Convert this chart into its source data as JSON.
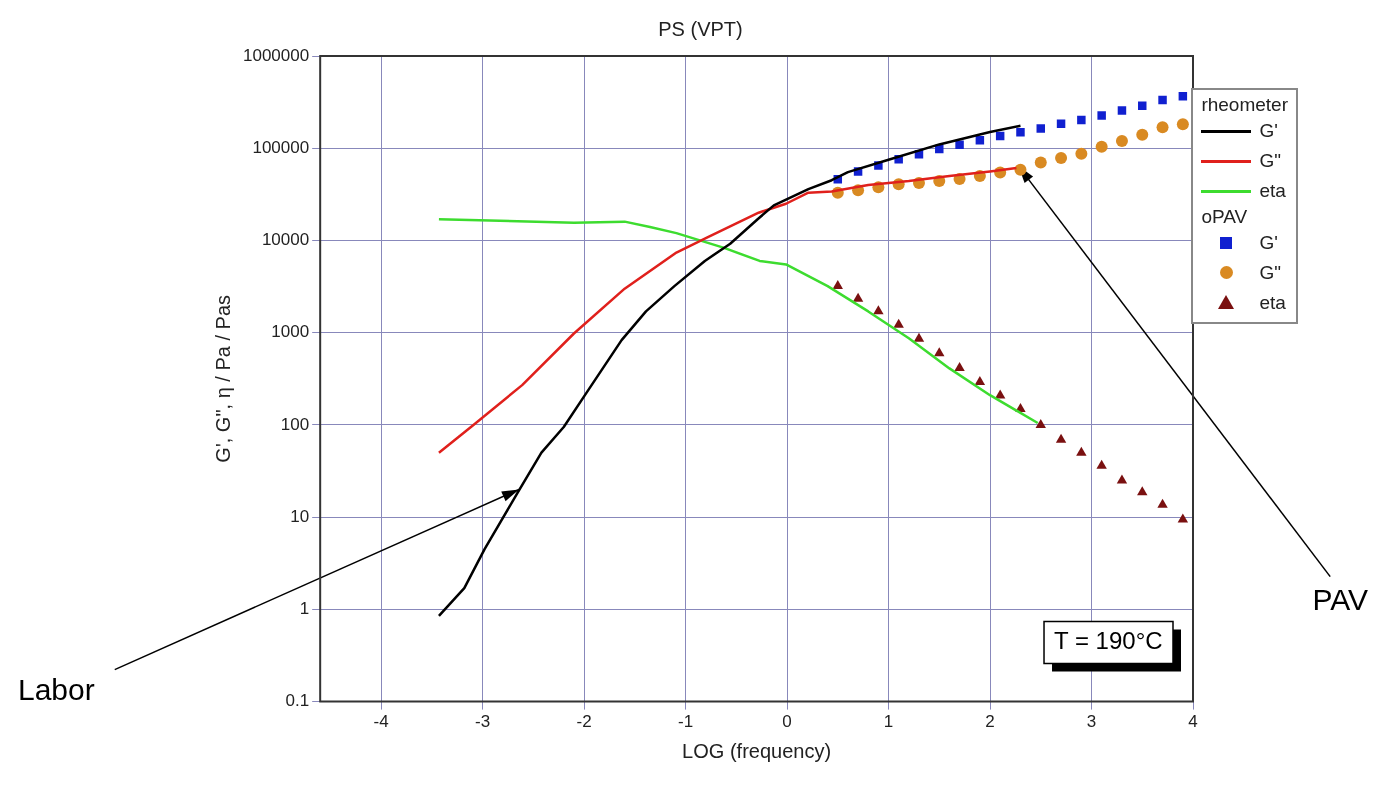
{
  "chart_data": {
    "type": "line",
    "title": "PS (VPT)",
    "xlabel": "LOG (frequency)",
    "ylabel": "G', G\", η / Pa / Pas",
    "log": "y",
    "grid": true,
    "legend": "right",
    "xlim": [
      -4.6,
      4
    ],
    "xticks": [
      -4,
      -3,
      -2,
      -1,
      0,
      1,
      2,
      3,
      4
    ],
    "ylim": [
      0.1,
      1000000
    ],
    "yticks": [
      0.1,
      1,
      10,
      100,
      1000,
      10000,
      100000,
      1000000
    ],
    "annotations": [
      "rheometer",
      "oPAV",
      "T = 190°C",
      {
        "text": "Labor",
        "x": -2.64,
        "y": 20
      },
      {
        "text": "PAV",
        "x": 2.28,
        "y": 64000
      }
    ],
    "series": [
      {
        "name": "G'",
        "type": "line",
        "marker": "none",
        "color": "#000000",
        "x": [
          -3.43,
          -3.18,
          -2.98,
          -2.66,
          -2.42,
          -2.2,
          -1.98,
          -1.63,
          -1.39,
          -1.11,
          -0.81,
          -0.56,
          -0.29,
          -0.13,
          0.21,
          0.44,
          0.6,
          1.0,
          1.5,
          2.0,
          2.3
        ],
        "values": [
          0.85,
          1.7,
          4.5,
          18,
          50,
          95,
          220,
          830,
          1700,
          3200,
          6000,
          9200,
          17000,
          24000,
          36000,
          45000,
          55000,
          75000,
          110000,
          150000,
          175000
        ]
      },
      {
        "name": "G\"",
        "type": "line",
        "marker": "none",
        "color": "#e0201c",
        "x": [
          -3.43,
          -3.09,
          -2.61,
          -2.1,
          -1.6,
          -1.09,
          -0.79,
          -0.28,
          -0.01,
          0.21,
          0.44,
          0.8,
          1.2,
          1.6,
          2.0,
          2.26
        ],
        "values": [
          50,
          100,
          270,
          980,
          3000,
          7400,
          10700,
          20000,
          25000,
          33000,
          34000,
          40000,
          44000,
          50000,
          56000,
          61000
        ]
      },
      {
        "name": "eta",
        "type": "line",
        "marker": "none",
        "color": "#3ddc2f",
        "x": [
          -3.43,
          -2.1,
          -1.6,
          -1.35,
          -1.09,
          -0.62,
          -0.27,
          -0.01,
          0.4,
          0.8,
          1.2,
          1.6,
          2.0,
          2.47
        ],
        "values": [
          17000,
          15600,
          16000,
          14000,
          12000,
          8300,
          6000,
          5500,
          3200,
          1700,
          870,
          410,
          210,
          105
        ]
      },
      {
        "name": "G'",
        "type": "scatter",
        "marker": "square",
        "color": "#1020d0",
        "x": [
          0.5,
          0.7,
          0.9,
          1.1,
          1.3,
          1.5,
          1.7,
          1.9,
          2.1,
          2.3,
          2.5,
          2.7,
          2.9,
          3.1,
          3.3,
          3.5,
          3.7,
          3.9
        ],
        "values": [
          46000,
          56000,
          65000,
          76000,
          86000,
          98000,
          109000,
          122000,
          136000,
          149000,
          164000,
          184000,
          202000,
          227000,
          257000,
          288000,
          334000,
          367000
        ]
      },
      {
        "name": "G\"",
        "type": "scatter",
        "marker": "circle",
        "color": "#d98a22",
        "x": [
          0.5,
          0.7,
          0.9,
          1.1,
          1.3,
          1.5,
          1.7,
          1.9,
          2.1,
          2.3,
          2.5,
          2.7,
          2.9,
          3.1,
          3.3,
          3.5,
          3.7,
          3.9
        ],
        "values": [
          33000,
          35000,
          37700,
          40600,
          41900,
          44100,
          46500,
          50000,
          54400,
          58600,
          70000,
          78500,
          87300,
          104000,
          120000,
          140000,
          169000,
          182000
        ]
      },
      {
        "name": "eta",
        "type": "scatter",
        "marker": "triangle",
        "color": "#7a1010",
        "x": [
          0.5,
          0.7,
          0.9,
          1.1,
          1.3,
          1.5,
          1.7,
          1.9,
          2.1,
          2.3,
          2.5,
          2.7,
          2.9,
          3.1,
          3.3,
          3.5,
          3.7,
          3.9
        ],
        "values": [
          3200,
          2340,
          1710,
          1220,
          860,
          600,
          413,
          292,
          209,
          149,
          100,
          69,
          50,
          36,
          25,
          18.6,
          13.6,
          9.4
        ]
      }
    ]
  }
}
